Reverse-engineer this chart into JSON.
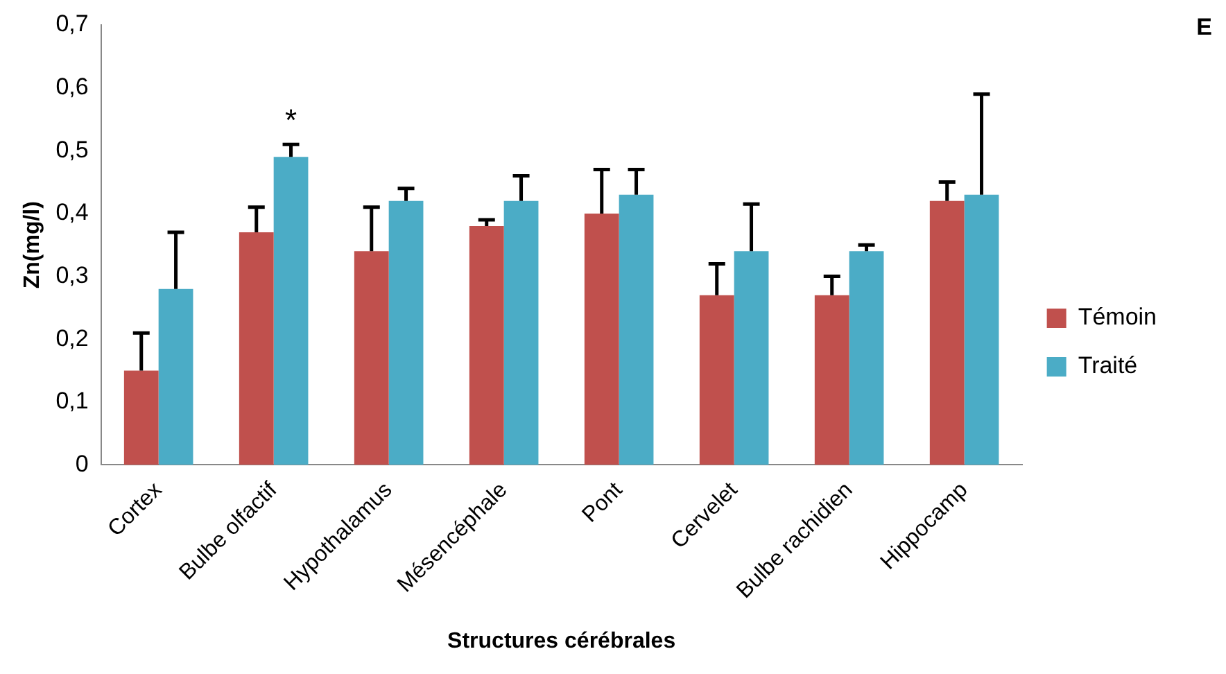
{
  "chart_data": {
    "type": "bar",
    "xlabel": "Structures cérébrales",
    "ylabel": "Zn(mg/l)",
    "categories": [
      "Cortex",
      "Bulbe olfactif",
      "Hypothalamus",
      "Mésencéphale",
      "Pont",
      "Cervelet",
      "Bulbe rachidien",
      "Hippocamp"
    ],
    "series": [
      {
        "name": "Témoin",
        "color": "#c0504d",
        "values": [
          0.15,
          0.37,
          0.34,
          0.38,
          0.4,
          0.27,
          0.27,
          0.42
        ],
        "errors": [
          [
            0.15,
            0.21
          ],
          [
            0.37,
            0.41
          ],
          [
            0.34,
            0.41
          ],
          [
            0.38,
            0.39
          ],
          [
            0.4,
            0.47
          ],
          [
            0.27,
            0.32
          ],
          [
            0.27,
            0.3
          ],
          [
            0.42,
            0.45
          ]
        ]
      },
      {
        "name": "Traité",
        "color": "#4bacc6",
        "values": [
          0.28,
          0.49,
          0.42,
          0.42,
          0.43,
          0.34,
          0.34,
          0.43
        ],
        "errors": [
          [
            0.28,
            0.37
          ],
          [
            0.49,
            0.51
          ],
          [
            0.42,
            0.44
          ],
          [
            0.42,
            0.46
          ],
          [
            0.43,
            0.47
          ],
          [
            0.34,
            0.415
          ],
          [
            0.34,
            0.35
          ],
          [
            0.43,
            0.59
          ]
        ]
      }
    ],
    "ylim": [
      0,
      0.7
    ],
    "yticks": [
      {
        "value": 0,
        "label": "0"
      },
      {
        "value": 0.1,
        "label": "0,1"
      },
      {
        "value": 0.2,
        "label": "0,2"
      },
      {
        "value": 0.3,
        "label": "0,3"
      },
      {
        "value": 0.4,
        "label": "0,4"
      },
      {
        "value": 0.5,
        "label": "0,5"
      },
      {
        "value": 0.6,
        "label": "0,6"
      },
      {
        "value": 0.7,
        "label": "0,7"
      }
    ],
    "grid": false,
    "legend": "right",
    "annotations": [
      "*",
      "E"
    ]
  }
}
